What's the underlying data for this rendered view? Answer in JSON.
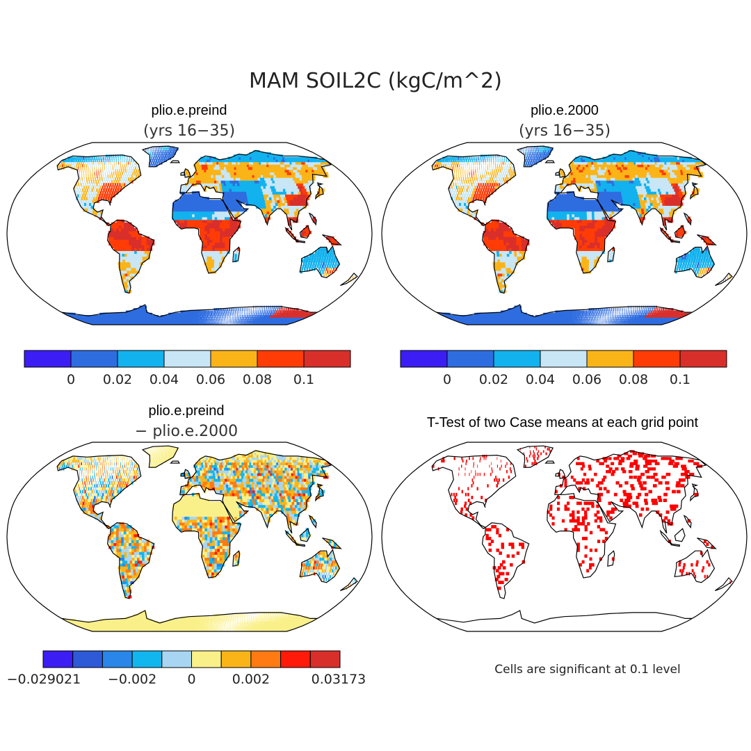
{
  "title": "MAM SOIL2C (kgC/m^2)",
  "panels": [
    {
      "kind": "field",
      "title": "plio.e.preind",
      "subtitle": "(yrs 16−35)",
      "palette": [
        "#3c1ef5",
        "#2e6de0",
        "#12b2ee",
        "#c8e6f5",
        "#fbb418",
        "#ff3c06",
        "#d92f2b"
      ],
      "colorbar_labels": [
        "0",
        "0.02",
        "0.04",
        "0.06",
        "0.08",
        "0.1"
      ]
    },
    {
      "kind": "field",
      "title": "plio.e.2000",
      "subtitle": "(yrs 16−35)",
      "palette": [
        "#3c1ef5",
        "#2e6de0",
        "#12b2ee",
        "#c8e6f5",
        "#fbb418",
        "#ff3c06",
        "#d92f2b"
      ],
      "colorbar_labels": [
        "0",
        "0.02",
        "0.04",
        "0.06",
        "0.08",
        "0.1"
      ]
    },
    {
      "kind": "difference",
      "title": "plio.e.preind",
      "subtitle": "− plio.e.2000",
      "palette": [
        "#3c1ef5",
        "#2e5ad8",
        "#2a86e8",
        "#12b6ee",
        "#a8d6f2",
        "#faf08a",
        "#fbb418",
        "#ff7a12",
        "#ff1a0a",
        "#d92f2b"
      ],
      "colorbar_labels": [
        "−0.029021",
        "−0.002",
        "0",
        "0.002",
        "0.03173"
      ]
    },
    {
      "kind": "ttest",
      "title": "T-Test of two Case means at each grid point",
      "note": "Cells are significant at 0.1 level",
      "marker_color": "#ff0000"
    }
  ]
}
